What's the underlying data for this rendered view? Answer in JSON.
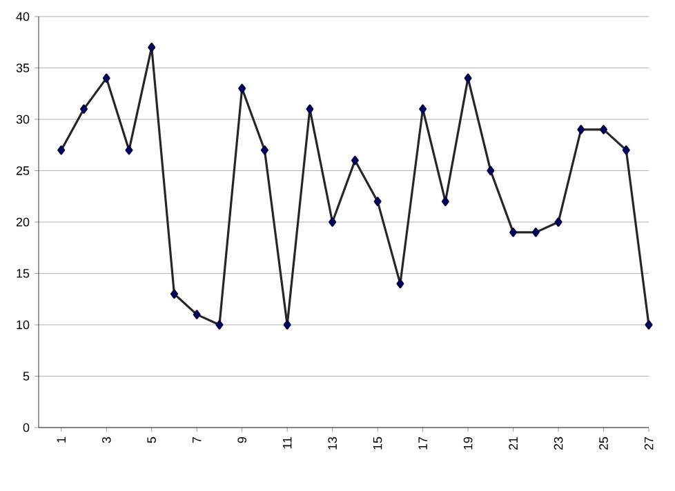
{
  "chart_data": {
    "type": "line",
    "categories": [
      "1",
      null,
      "3",
      null,
      "5",
      null,
      "7",
      null,
      "9",
      null,
      "11",
      null,
      "13",
      null,
      "15",
      null,
      "17",
      null,
      "19",
      null,
      "21",
      null,
      "23",
      null,
      "25",
      null,
      "27"
    ],
    "series": [
      {
        "color": "#262626",
        "values": [
          27,
          31,
          34,
          27,
          37,
          13,
          11,
          10,
          33,
          27,
          10,
          31,
          20,
          26,
          22,
          14,
          31,
          22,
          34,
          25,
          19,
          19,
          20,
          29,
          29,
          27,
          10
        ]
      }
    ],
    "ylim": [
      0,
      40
    ],
    "yticks": [
      0,
      5,
      10,
      15,
      20,
      25,
      30,
      35,
      40
    ],
    "grid": "y",
    "marker": "diamond",
    "line_style": "solid"
  }
}
